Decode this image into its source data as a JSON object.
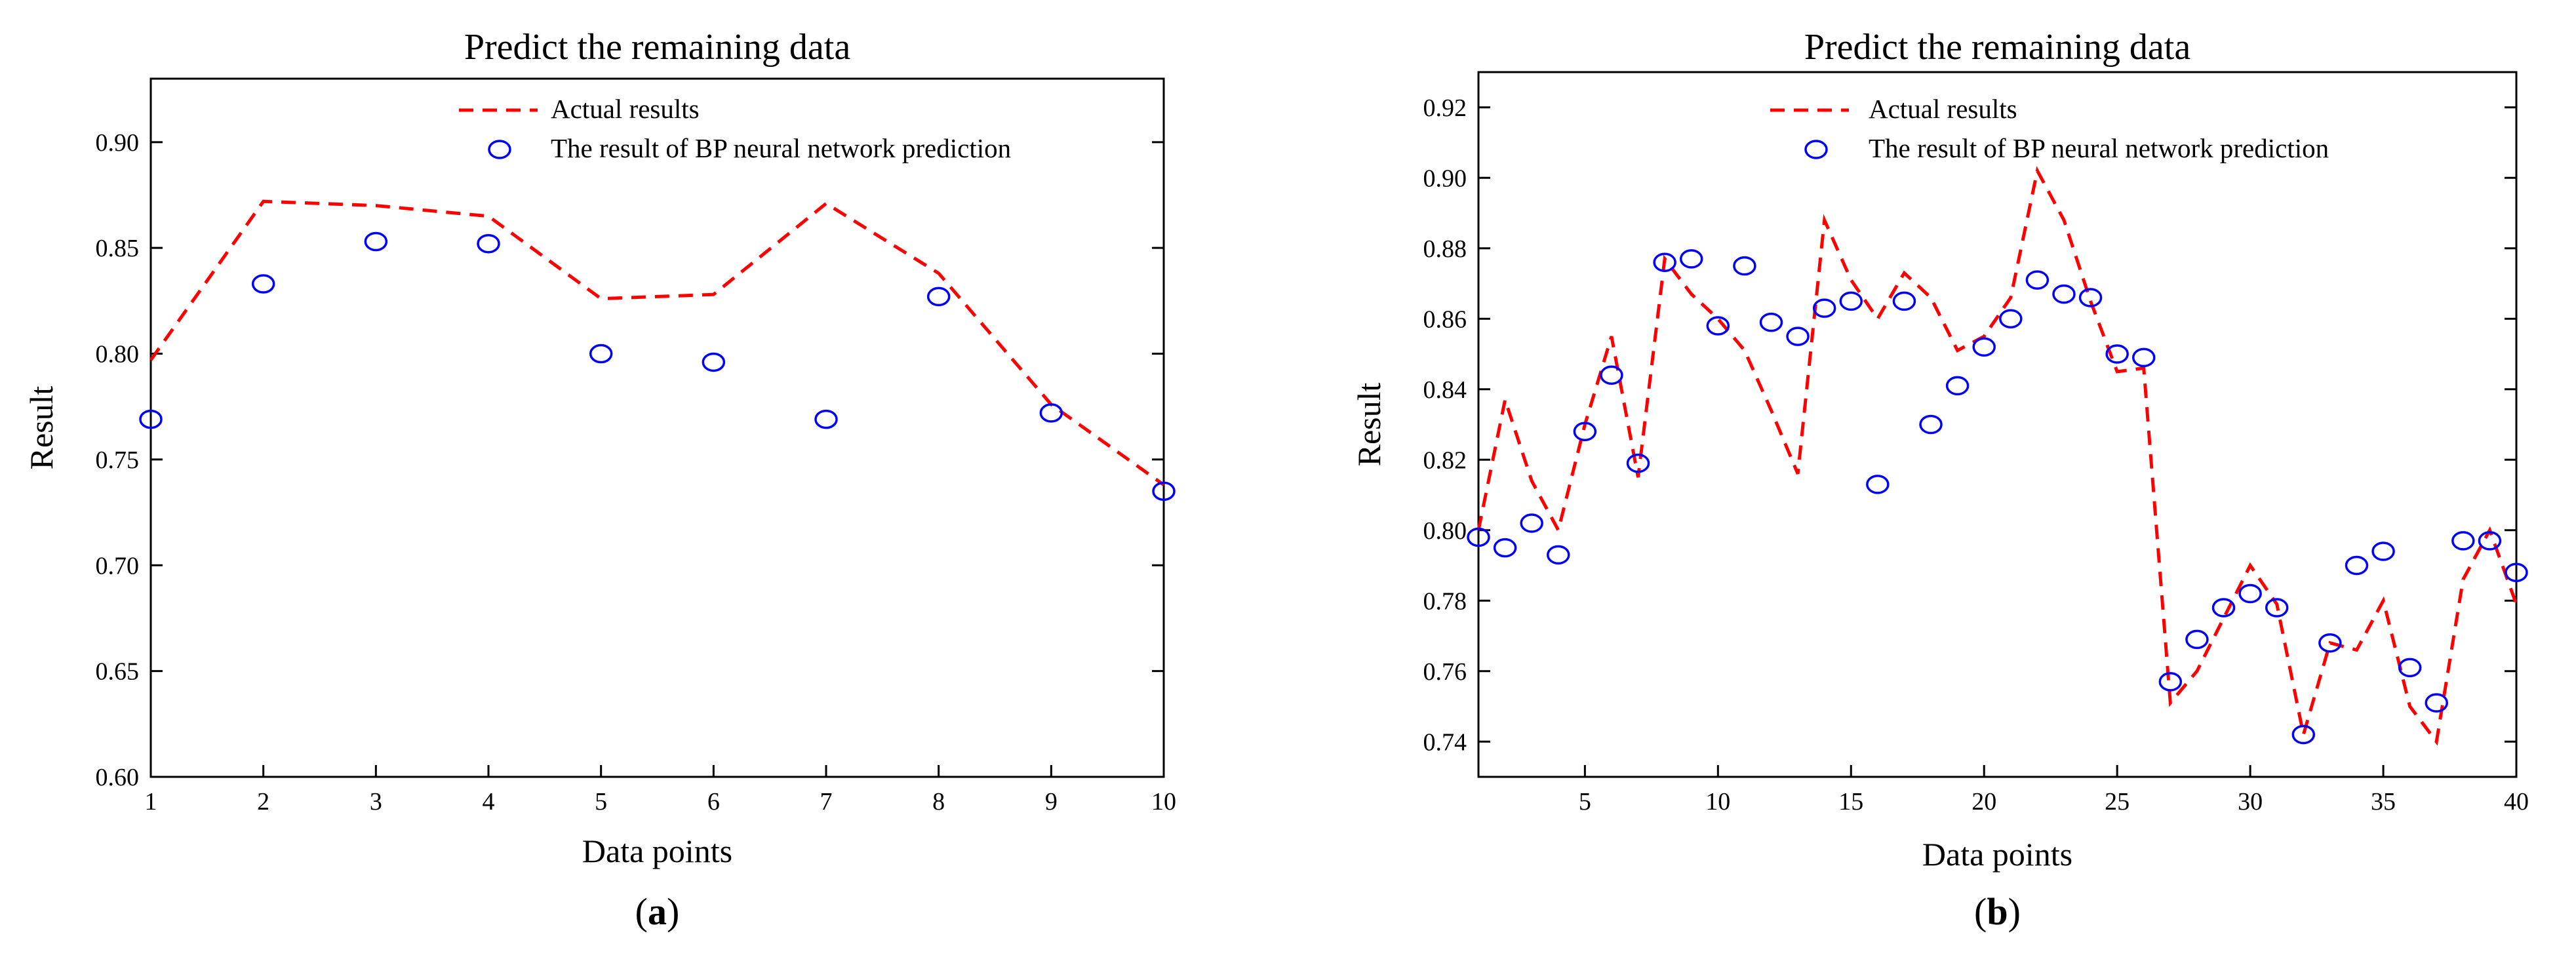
{
  "colors": {
    "actual": "#ff0000",
    "predicted": "#0000ff",
    "axis": "#000000"
  },
  "chart_data": [
    {
      "type": "line",
      "panel_label": "a",
      "title": "Predict the remaining data",
      "xlabel": "Data points",
      "ylabel": "Result",
      "xlim": [
        1,
        10
      ],
      "ylim": [
        0.6,
        0.93
      ],
      "xticks": [
        1,
        2,
        3,
        4,
        5,
        6,
        7,
        8,
        9,
        10
      ],
      "yticks": [
        "0.60",
        "0.65",
        "0.70",
        "0.75",
        "0.80",
        "0.85",
        "0.90"
      ],
      "legend_placement": "top-center",
      "series": [
        {
          "name": "Actual results",
          "style": "dashed-line",
          "x": [
            1,
            2,
            3,
            4,
            5,
            6,
            7,
            8,
            9,
            10
          ],
          "values": [
            0.797,
            0.872,
            0.87,
            0.865,
            0.826,
            0.828,
            0.871,
            0.838,
            0.776,
            0.738
          ]
        },
        {
          "name": "The result of BP neural network prediction",
          "style": "open-circle",
          "x": [
            1,
            2,
            3,
            4,
            5,
            6,
            7,
            8,
            9,
            10
          ],
          "values": [
            0.769,
            0.833,
            0.853,
            0.852,
            0.8,
            0.796,
            0.769,
            0.827,
            0.772,
            0.735
          ]
        }
      ]
    },
    {
      "type": "line",
      "panel_label": "b",
      "title": "Predict the remaining data",
      "xlabel": "Data points",
      "ylabel": "Result",
      "xlim": [
        1,
        40
      ],
      "ylim": [
        0.73,
        0.93
      ],
      "xticks": [
        5,
        10,
        15,
        20,
        25,
        30,
        35,
        40
      ],
      "yticks": [
        "0.74",
        "0.76",
        "0.78",
        "0.80",
        "0.82",
        "0.84",
        "0.86",
        "0.88",
        "0.90",
        "0.92"
      ],
      "legend_placement": "top-center",
      "series": [
        {
          "name": "Actual results",
          "style": "dashed-line",
          "x": [
            1,
            2,
            3,
            4,
            5,
            6,
            7,
            8,
            9,
            10,
            11,
            12,
            13,
            14,
            15,
            16,
            17,
            18,
            19,
            20,
            21,
            22,
            23,
            24,
            25,
            26,
            27,
            28,
            29,
            30,
            31,
            32,
            33,
            34,
            35,
            36,
            37,
            38,
            39,
            40
          ],
          "values": [
            0.8,
            0.837,
            0.814,
            0.8,
            0.83,
            0.855,
            0.815,
            0.877,
            0.867,
            0.86,
            0.851,
            0.834,
            0.816,
            0.888,
            0.871,
            0.86,
            0.873,
            0.866,
            0.851,
            0.855,
            0.866,
            0.902,
            0.888,
            0.865,
            0.845,
            0.846,
            0.751,
            0.76,
            0.775,
            0.79,
            0.779,
            0.742,
            0.768,
            0.766,
            0.78,
            0.75,
            0.74,
            0.786,
            0.8,
            0.779
          ]
        },
        {
          "name": "The result of BP neural network prediction",
          "style": "open-circle",
          "x": [
            1,
            2,
            3,
            4,
            5,
            6,
            7,
            8,
            9,
            10,
            11,
            12,
            13,
            14,
            15,
            16,
            17,
            18,
            19,
            20,
            21,
            22,
            23,
            24,
            25,
            26,
            27,
            28,
            29,
            30,
            31,
            32,
            33,
            34,
            35,
            36,
            37,
            38,
            39,
            40
          ],
          "values": [
            0.798,
            0.795,
            0.802,
            0.793,
            0.828,
            0.844,
            0.819,
            0.876,
            0.877,
            0.858,
            0.875,
            0.859,
            0.855,
            0.863,
            0.865,
            0.813,
            0.865,
            0.83,
            0.841,
            0.852,
            0.86,
            0.871,
            0.867,
            0.866,
            0.85,
            0.849,
            0.757,
            0.769,
            0.778,
            0.782,
            0.778,
            0.742,
            0.768,
            0.79,
            0.794,
            0.761,
            0.751,
            0.797,
            0.797,
            0.788
          ]
        }
      ]
    }
  ]
}
